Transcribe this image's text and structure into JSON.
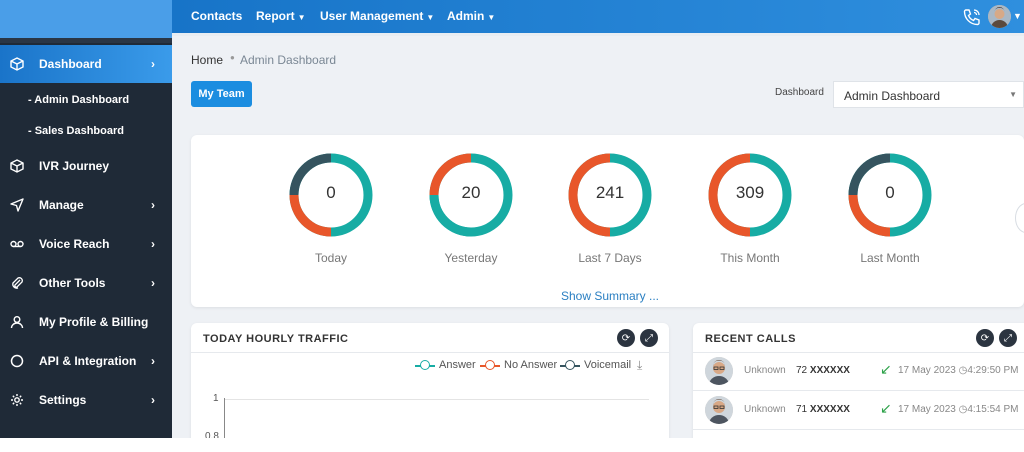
{
  "sidebar": {
    "items": [
      {
        "label": "Dashboard",
        "icon": "cube-icon",
        "has_chevron": true,
        "active": true
      },
      {
        "label": "IVR Journey",
        "icon": "cube-icon",
        "has_chevron": false
      },
      {
        "label": "Manage",
        "icon": "send-icon",
        "has_chevron": true
      },
      {
        "label": "Voice Reach",
        "icon": "voicemail-icon",
        "has_chevron": true
      },
      {
        "label": "Other Tools",
        "icon": "paperclip-icon",
        "has_chevron": true
      },
      {
        "label": "My Profile & Billing",
        "icon": "user-icon",
        "has_chevron": false
      },
      {
        "label": "API & Integration",
        "icon": "circle-icon",
        "has_chevron": true
      },
      {
        "label": "Settings",
        "icon": "gear-icon",
        "has_chevron": true
      }
    ],
    "sub_items": [
      "- Admin Dashboard",
      "- Sales Dashboard"
    ]
  },
  "topbar": {
    "menu": [
      {
        "label": "Contacts",
        "dropdown": false
      },
      {
        "label": "Report",
        "dropdown": true
      },
      {
        "label": "User Management",
        "dropdown": true
      },
      {
        "label": "Admin",
        "dropdown": true
      }
    ]
  },
  "breadcrumb": {
    "home": "Home",
    "current": "Admin Dashboard"
  },
  "my_team_label": "My Team",
  "dashboard_select": {
    "label": "Dashboard",
    "value": "Admin Dashboard"
  },
  "stats": [
    {
      "value": "0",
      "label": "Today",
      "colors": [
        "#35545f",
        "#e8562a",
        "#17aca4"
      ]
    },
    {
      "value": "20",
      "label": "Yesterday",
      "colors": [
        "#e8562a",
        "#17aca4",
        "#17aca4"
      ]
    },
    {
      "value": "241",
      "label": "Last 7 Days",
      "colors": [
        "#e8562a",
        "#e8562a",
        "#17aca4"
      ]
    },
    {
      "value": "309",
      "label": "This Month",
      "colors": [
        "#e8562a",
        "#e8562a",
        "#17aca4"
      ]
    },
    {
      "value": "0",
      "label": "Last Month",
      "colors": [
        "#35545f",
        "#e8562a",
        "#17aca4"
      ]
    }
  ],
  "show_summary": "Show Summary ...",
  "traffic": {
    "title": "TODAY HOURLY TRAFFIC",
    "legend": [
      {
        "label": "Answer",
        "color": "#17aca4"
      },
      {
        "label": "No Answer",
        "color": "#e8562a"
      },
      {
        "label": "Voicemail",
        "color": "#35545f"
      }
    ],
    "y_ticks": [
      "1",
      "0.8"
    ]
  },
  "recent_calls": {
    "title": "RECENT CALLS",
    "rows": [
      {
        "name": "Unknown",
        "prefix": "72",
        "masked": "XXXXXX",
        "time": "17 May 2023",
        "clock": "4:29:50 PM"
      },
      {
        "name": "Unknown",
        "prefix": "71",
        "masked": "XXXXXX",
        "time": "17 May 2023",
        "clock": "4:15:54 PM"
      }
    ]
  }
}
